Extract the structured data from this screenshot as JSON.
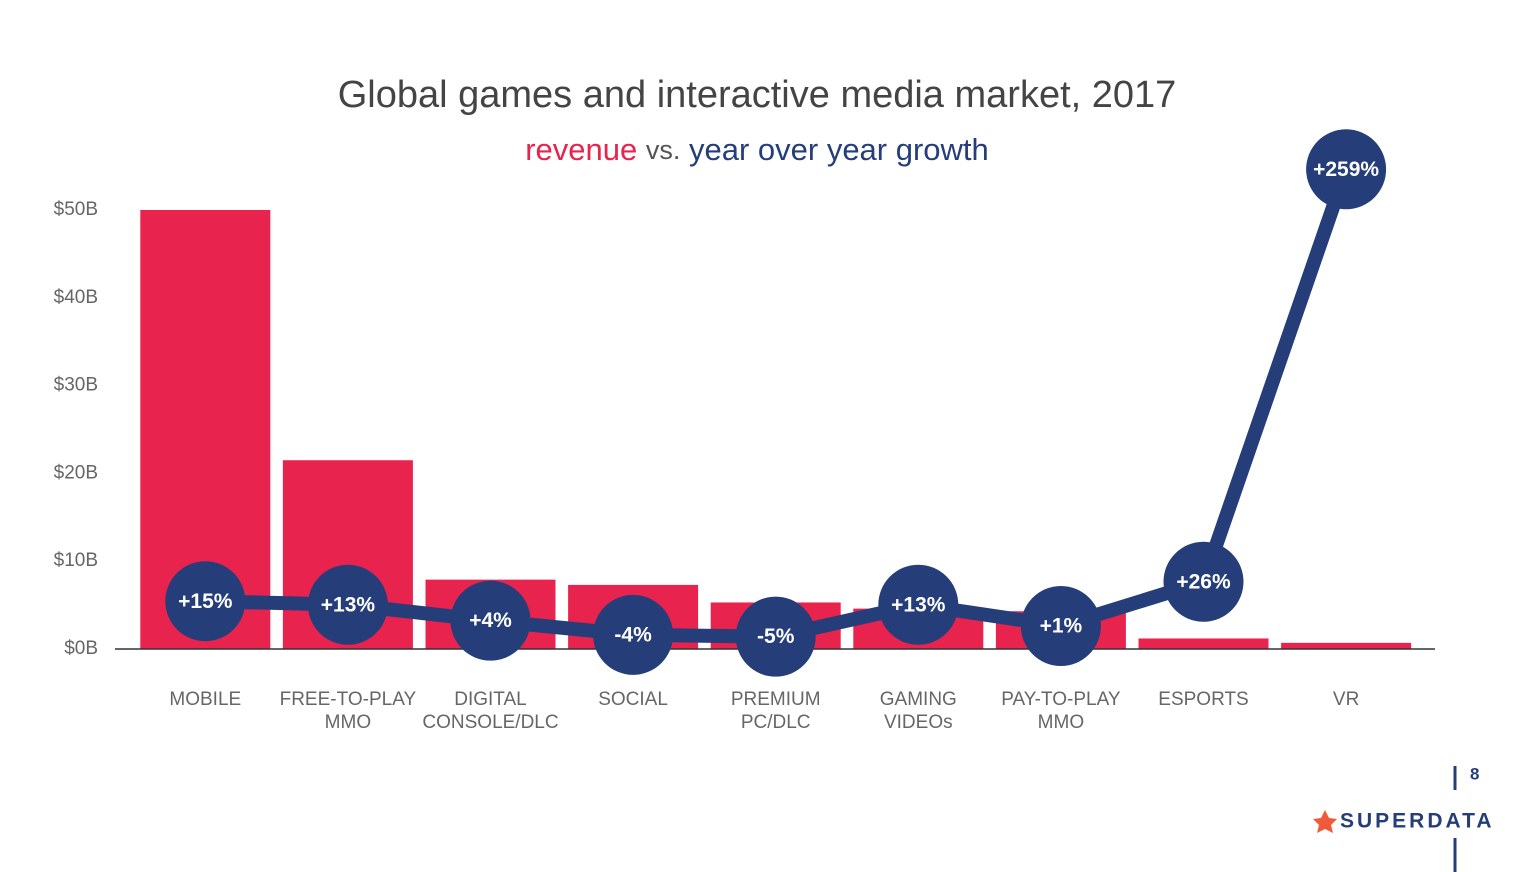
{
  "chart_data": {
    "type": "bar_line",
    "title": "Global games and interactive media market, 2017",
    "subtitle_connector": "vs.",
    "categories": [
      "MOBILE",
      "FREE-TO-PLAY\nMMO",
      "DIGITAL\nCONSOLE/DLC",
      "SOCIAL",
      "PREMIUM\nPC/DLC",
      "GAMING\nVIDEOs",
      "PAY-TO-PLAY\nMMO",
      "ESPORTS",
      "VR"
    ],
    "series": [
      {
        "name": "revenue",
        "color": "#e8234e",
        "values": [
          50,
          21.5,
          7.9,
          7.3,
          5.3,
          4.6,
          4.3,
          1.2,
          0.7
        ]
      },
      {
        "name": "year over year growth",
        "color": "#253e7a",
        "axis": "y2",
        "values": [
          15,
          13,
          4,
          -4,
          -5,
          13,
          1,
          26,
          259
        ],
        "value_labels": [
          "+15%",
          "+13%",
          "+4%",
          "-4%",
          "-5%",
          "+13%",
          "+1%",
          "+26%",
          "+259%"
        ]
      }
    ],
    "ylim": [
      0,
      50
    ],
    "yticks": [
      {
        "value": 0,
        "label": "$0B"
      },
      {
        "value": 10,
        "label": "$10B"
      },
      {
        "value": 20,
        "label": "$20B"
      },
      {
        "value": 30,
        "label": "$30B"
      },
      {
        "value": 40,
        "label": "$40B"
      },
      {
        "value": 50,
        "label": "$50B"
      }
    ],
    "y2lim": [
      -12,
      236
    ]
  },
  "page_number": "8",
  "logo": "SUPERDATA"
}
